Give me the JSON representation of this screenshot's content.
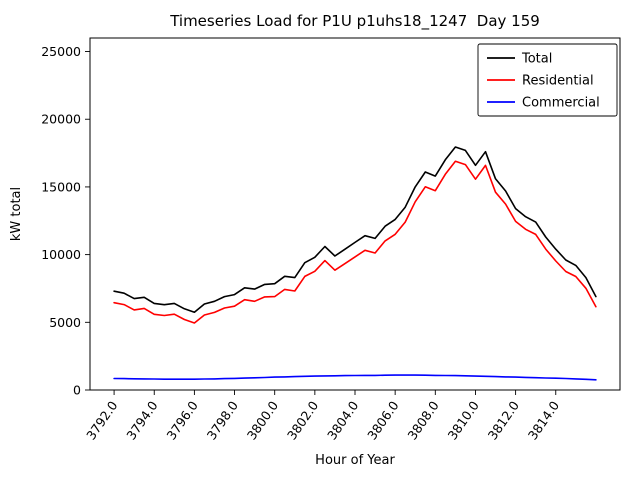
{
  "chart_data": {
    "type": "line",
    "title": "Timeseries Load for P1U p1uhs18_1247  Day 159",
    "xlabel": "Hour of Year",
    "ylabel": "kW total",
    "xlim": [
      3790.8,
      3817.2
    ],
    "ylim": [
      0,
      26000
    ],
    "grid": false,
    "legend_position": "upper right",
    "xticks": [
      3792,
      3794,
      3796,
      3798,
      3800,
      3802,
      3804,
      3806,
      3808,
      3810,
      3812,
      3814
    ],
    "xtick_labels": [
      "3792.0",
      "3794.0",
      "3796.0",
      "3798.0",
      "3800.0",
      "3802.0",
      "3804.0",
      "3806.0",
      "3808.0",
      "3810.0",
      "3812.0",
      "3814.0"
    ],
    "yticks": [
      0,
      5000,
      10000,
      15000,
      20000,
      25000
    ],
    "ytick_labels": [
      "0",
      "5000",
      "10000",
      "15000",
      "20000",
      "25000"
    ],
    "x": [
      3792,
      3792.5,
      3793,
      3793.5,
      3794,
      3794.5,
      3795,
      3795.5,
      3796,
      3796.5,
      3797,
      3797.5,
      3798,
      3798.5,
      3799,
      3799.5,
      3800,
      3800.5,
      3801,
      3801.5,
      3802,
      3802.5,
      3803,
      3803.5,
      3804,
      3804.5,
      3805,
      3805.5,
      3806,
      3806.5,
      3807,
      3807.5,
      3808,
      3808.5,
      3809,
      3809.5,
      3810,
      3810.5,
      3811,
      3811.5,
      3812,
      3812.5,
      3813,
      3813.5,
      3814,
      3814.5,
      3815,
      3815.5,
      3816
    ],
    "series": [
      {
        "name": "Total",
        "color": "#000000",
        "values": [
          7300,
          7150,
          6750,
          6850,
          6400,
          6300,
          6400,
          6000,
          5750,
          6350,
          6550,
          6900,
          7050,
          7550,
          7450,
          7800,
          7850,
          8400,
          8300,
          9400,
          9800,
          10600,
          9900,
          10400,
          10900,
          11400,
          11200,
          12100,
          12600,
          13500,
          15000,
          16100,
          15800,
          17000,
          17950,
          17700,
          16600,
          17600,
          15600,
          14700,
          13400,
          12800,
          12400,
          11300,
          10400,
          9600,
          9200,
          8300,
          6900
        ]
      },
      {
        "name": "Residential",
        "color": "#ff0000",
        "values": [
          6450,
          6310,
          5920,
          6030,
          5590,
          5500,
          5600,
          5205,
          4950,
          5540,
          5730,
          6060,
          6190,
          6670,
          6550,
          6880,
          6900,
          7430,
          7310,
          8390,
          8770,
          9560,
          8850,
          9340,
          9830,
          10320,
          10120,
          11010,
          11500,
          12400,
          13900,
          15010,
          14720,
          15930,
          16890,
          16650,
          15570,
          16590,
          14610,
          13730,
          12450,
          11870,
          11490,
          10410,
          9530,
          8750,
          8380,
          7510,
          6150
        ]
      },
      {
        "name": "Commercial",
        "color": "#0000ff",
        "values": [
          850,
          840,
          830,
          820,
          810,
          800,
          800,
          795,
          800,
          810,
          820,
          840,
          860,
          880,
          900,
          920,
          950,
          970,
          990,
          1010,
          1030,
          1040,
          1050,
          1060,
          1070,
          1080,
          1080,
          1090,
          1100,
          1100,
          1100,
          1090,
          1080,
          1070,
          1060,
          1050,
          1030,
          1010,
          990,
          970,
          950,
          930,
          910,
          890,
          870,
          850,
          820,
          790,
          750
        ]
      }
    ]
  }
}
